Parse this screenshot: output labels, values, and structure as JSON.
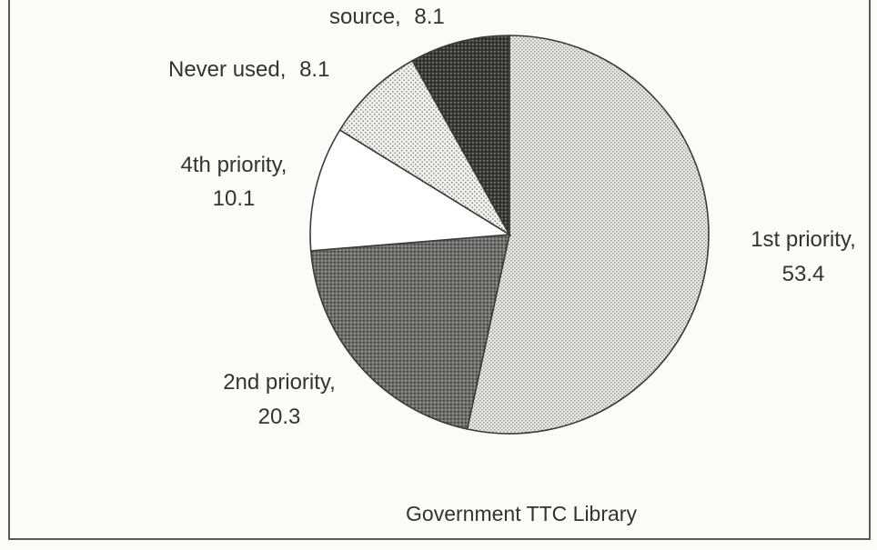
{
  "chart_data": {
    "type": "pie",
    "slices": [
      {
        "label": "1st priority,",
        "value_text": "53.4",
        "value": 53.4,
        "pattern": "light-dots"
      },
      {
        "label": "2nd priority,",
        "value_text": "20.3",
        "value": 20.3,
        "pattern": "dark-dots"
      },
      {
        "label": "4th priority,",
        "value_text": "10.1",
        "value": 10.1,
        "pattern": "white"
      },
      {
        "label": "Never used,",
        "value_text": "8.1",
        "value": 8.1,
        "pattern": "sparse-dots"
      },
      {
        "label": "source,",
        "value_text": "8.1",
        "value": 8.1,
        "pattern": "darkest-dots"
      }
    ],
    "caption": "Government TTC Library",
    "start_angle_degrees": 0,
    "direction": "clockwise"
  },
  "colors": {
    "background": "#fbfbf9",
    "text": "#333333",
    "outline": "#3a3a3a"
  }
}
